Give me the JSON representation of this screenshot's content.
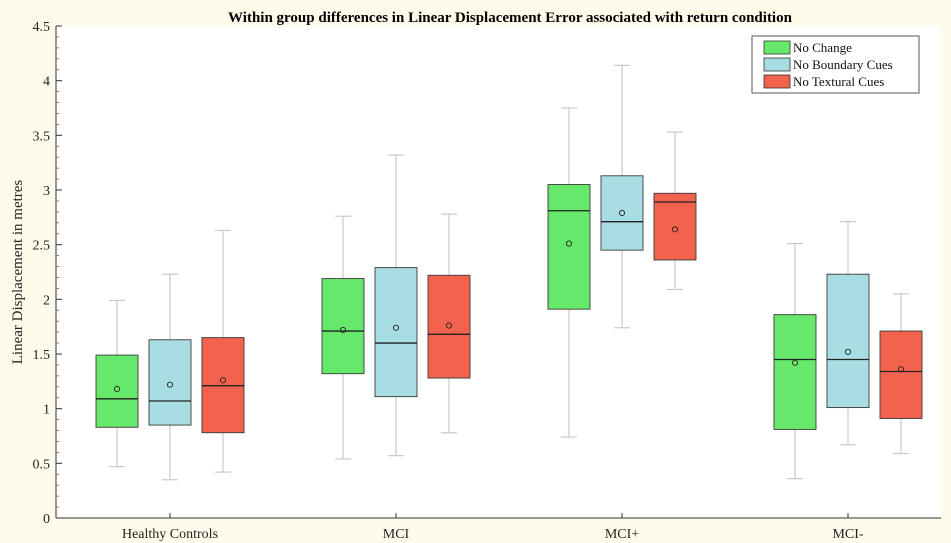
{
  "chart_data": {
    "type": "box",
    "title": "Within group differences in Linear Displacement Error associated with return condition",
    "xlabel": "",
    "ylabel": "Linear Displacement in metres",
    "ylim": [
      0,
      4.5
    ],
    "yticks": [
      "0",
      "0.5",
      "1",
      "1.5",
      "2",
      "2.5",
      "3",
      "3.5",
      "4",
      "4.5"
    ],
    "categories": [
      "Healthy Controls",
      "MCI",
      "MCI+",
      "MCI-"
    ],
    "legend_position": "top-right",
    "series": [
      {
        "name": "No Change",
        "color": "#66e86a",
        "boxes": [
          {
            "min": 0.47,
            "q1": 0.83,
            "median": 1.09,
            "q3": 1.49,
            "max": 1.99,
            "mean": 1.18
          },
          {
            "min": 0.54,
            "q1": 1.32,
            "median": 1.71,
            "q3": 2.19,
            "max": 2.76,
            "mean": 1.72
          },
          {
            "min": 0.74,
            "q1": 1.91,
            "median": 2.81,
            "q3": 3.05,
            "max": 3.75,
            "mean": 2.51
          },
          {
            "min": 0.36,
            "q1": 0.81,
            "median": 1.45,
            "q3": 1.86,
            "max": 2.51,
            "mean": 1.42
          }
        ]
      },
      {
        "name": "No Boundary Cues",
        "color": "#a7dde3",
        "boxes": [
          {
            "min": 0.35,
            "q1": 0.85,
            "median": 1.07,
            "q3": 1.63,
            "max": 2.23,
            "mean": 1.22
          },
          {
            "min": 0.57,
            "q1": 1.11,
            "median": 1.6,
            "q3": 2.29,
            "max": 3.32,
            "mean": 1.74
          },
          {
            "min": 1.74,
            "q1": 2.45,
            "median": 2.71,
            "q3": 3.13,
            "max": 4.14,
            "mean": 2.79
          },
          {
            "min": 0.67,
            "q1": 1.01,
            "median": 1.45,
            "q3": 2.23,
            "max": 2.71,
            "mean": 1.52
          }
        ]
      },
      {
        "name": "No Textural Cues",
        "color": "#f2624c",
        "boxes": [
          {
            "min": 0.42,
            "q1": 0.78,
            "median": 1.21,
            "q3": 1.65,
            "max": 2.63,
            "mean": 1.26
          },
          {
            "min": 0.78,
            "q1": 1.28,
            "median": 1.68,
            "q3": 2.22,
            "max": 2.78,
            "mean": 1.76
          },
          {
            "min": 2.09,
            "q1": 2.36,
            "median": 2.89,
            "q3": 2.97,
            "max": 3.53,
            "mean": 2.64
          },
          {
            "min": 0.59,
            "q1": 0.91,
            "median": 1.34,
            "q3": 1.71,
            "max": 2.05,
            "mean": 1.36
          }
        ]
      }
    ]
  }
}
